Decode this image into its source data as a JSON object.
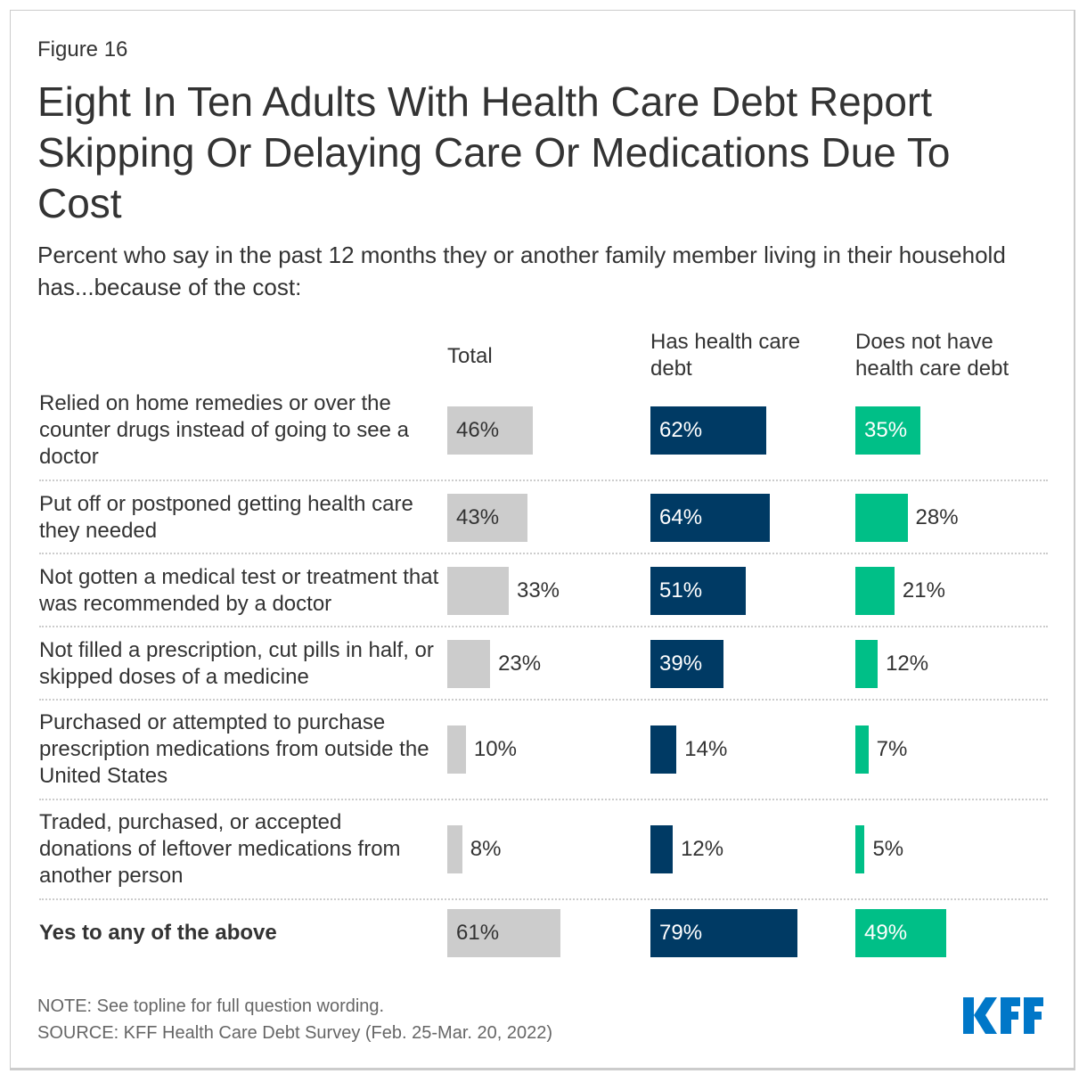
{
  "figure_label": "Figure 16",
  "title": "Eight In Ten Adults With Health Care Debt Report Skipping Or Delaying Care Or Medications Due To Cost",
  "subtitle": "Percent who say in the past 12 months they or another family member living in their household has...because of the cost:",
  "chart_data": {
    "type": "bar",
    "orientation": "horizontal",
    "categories": [
      "Relied on home remedies or over the counter drugs instead of going to see a doctor",
      "Put off or postponed getting health care they needed",
      "Not gotten a medical test or treatment that was recommended by a doctor",
      "Not filled a prescription, cut pills in half, or skipped doses of a medicine",
      "Purchased or attempted to purchase prescription medications from outside the United States",
      "Traded, purchased, or accepted donations of leftover medications from another person",
      "Yes to any of the above"
    ],
    "series": [
      {
        "name": "Total",
        "color": "#cccccc",
        "values": [
          46,
          43,
          33,
          23,
          10,
          8,
          61
        ]
      },
      {
        "name": "Has health care debt",
        "color": "#003a64",
        "values": [
          62,
          64,
          51,
          39,
          14,
          12,
          79
        ]
      },
      {
        "name": "Does not have health care debt",
        "color": "#00bf87",
        "values": [
          35,
          28,
          21,
          12,
          7,
          5,
          49
        ]
      }
    ],
    "unit": "%"
  },
  "note": "NOTE: See topline for full question wording.",
  "source": "SOURCE: KFF Health Care Debt Survey (Feb. 25-Mar. 20, 2022)",
  "logo": {
    "text": "KFF",
    "color": "#0077c8"
  }
}
